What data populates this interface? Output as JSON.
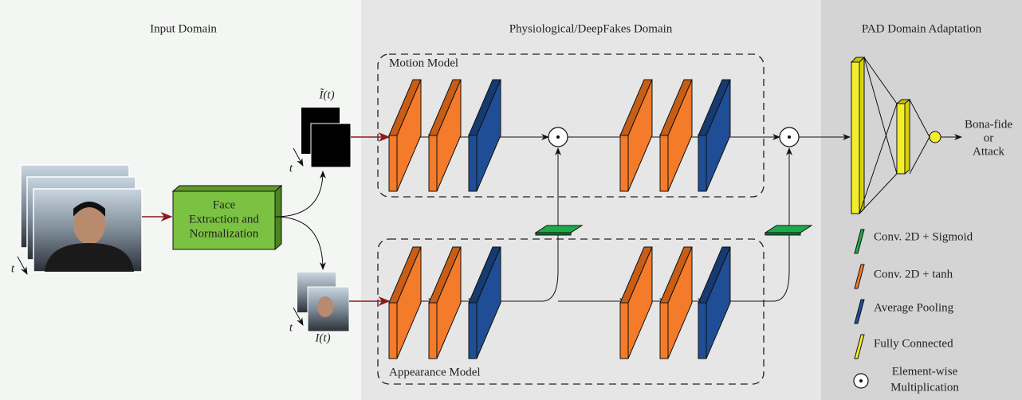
{
  "sections": [
    {
      "title": "Input Domain"
    },
    {
      "title": "Physiological/DeepFakes Domain"
    },
    {
      "title": "PAD Domain Adaptation"
    }
  ],
  "models": [
    {
      "label": "Motion Model"
    },
    {
      "label": "Appearance Model"
    }
  ],
  "face_block": {
    "lines": [
      "Face",
      "Extraction and",
      "Normalization"
    ]
  },
  "inputs": {
    "motion_label": "Ĩ(t)",
    "appearance_label": "I(t)",
    "time_axis": "t"
  },
  "output": {
    "lines": [
      "Bona-fide",
      "or",
      "Attack"
    ]
  },
  "legend": [
    {
      "label": "Conv. 2D + Sigmoid"
    },
    {
      "label": "Conv. 2D + tanh"
    },
    {
      "label": "Average Pooling"
    },
    {
      "label": "Fully Connected"
    },
    {
      "lines": [
        "Element-wise",
        "Multiplication"
      ]
    }
  ]
}
